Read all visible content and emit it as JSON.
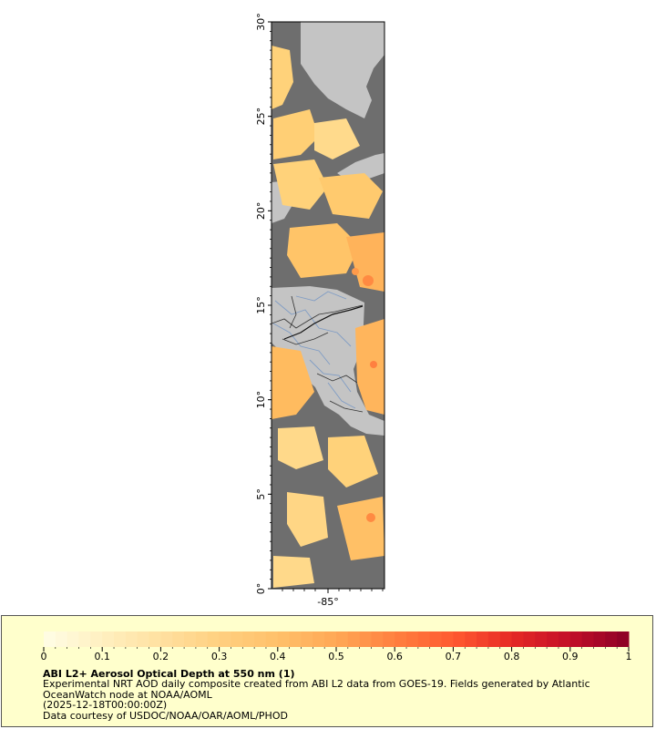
{
  "map": {
    "title": "ABI L2+ Aerosol Optical Depth at 550 nm (1)",
    "description_lines": [
      "Experimental NRT AOD daily composite created from ABI L2 data from GOES-19. Fields generated by Atlantic OceanWatch node at NOAA/AOML",
      "(2025-12-18T00:00:00Z)",
      "Data courtesy of USDOC/NOAA/OAR/AOML/PHOD"
    ],
    "lat_ticks": [
      "0°",
      "5°",
      "10°",
      "15°",
      "20°",
      "25°",
      "30°"
    ],
    "lon_ticks": [
      "-85°"
    ],
    "lat_range": [
      0,
      30
    ],
    "colors": {
      "ocean_no_data": "#6e6e6e",
      "land": "#c4c4c4",
      "rivers": "#7f9cc4",
      "borders": "#333333",
      "legend_bg": "#ffffcc"
    }
  },
  "colorbar": {
    "ticks": [
      "0",
      "0.1",
      "0.2",
      "0.3",
      "0.4",
      "0.5",
      "0.6",
      "0.7",
      "0.8",
      "0.9",
      "1"
    ],
    "range": [
      0,
      1
    ],
    "stops": [
      "#fffde6",
      "#fff0c0",
      "#ffe0a0",
      "#ffd080",
      "#ffc06a",
      "#ffa855",
      "#ff8040",
      "#ff5a30",
      "#e62a25",
      "#c20e28",
      "#8b0026"
    ]
  }
}
